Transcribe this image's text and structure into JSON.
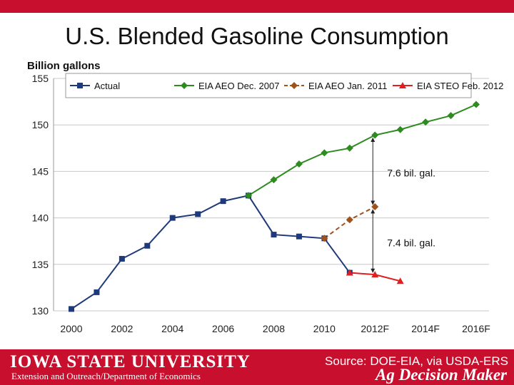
{
  "slide_title": "U.S. Blended Gasoline Consumption",
  "footer": {
    "logo_text": "IOWA STATE UNIVERSITY",
    "unit_text": "Extension and Outreach/Department of Economics",
    "source_text": "Source: DOE-EIA, via USDA-ERS",
    "brand_text": "Ag Decision Maker"
  },
  "colors": {
    "brand_red": "#c8102e",
    "actual": "#1f3a7a",
    "aeo2007": "#2e8b1f",
    "aeo2011": "#a0521d",
    "steo2012": "#e02020"
  },
  "chart_data": {
    "type": "line",
    "ylabel": "Billion gallons",
    "ylim": [
      130,
      155
    ],
    "yticks": [
      130,
      135,
      140,
      145,
      150,
      155
    ],
    "xlim": [
      2000,
      2016
    ],
    "xticks": [
      2000,
      2002,
      2004,
      2006,
      2008,
      2010,
      2012,
      2014,
      2016
    ],
    "xtick_labels": [
      "2000",
      "2002",
      "2004",
      "2006",
      "2008",
      "2010",
      "2012F",
      "2014F",
      "2016F"
    ],
    "series": [
      {
        "name": "Actual",
        "color": "#1f3a7a",
        "marker": "square",
        "dash": false,
        "x": [
          2000,
          2001,
          2002,
          2003,
          2004,
          2005,
          2006,
          2007,
          2008,
          2009,
          2010,
          2011
        ],
        "values": [
          130.2,
          132.0,
          135.6,
          137.0,
          140.0,
          140.4,
          141.8,
          142.4,
          138.2,
          138.0,
          137.8,
          134.1
        ]
      },
      {
        "name": "EIA AEO Dec. 2007",
        "color": "#2e8b1f",
        "marker": "diamond",
        "dash": false,
        "x": [
          2007,
          2008,
          2009,
          2010,
          2011,
          2012,
          2013,
          2014,
          2015,
          2016
        ],
        "values": [
          142.4,
          144.1,
          145.8,
          147.0,
          147.5,
          148.9,
          149.5,
          150.3,
          151.0,
          152.2
        ]
      },
      {
        "name": "EIA AEO Jan. 2011",
        "color": "#a0521d",
        "marker": "diamond",
        "dash": true,
        "x": [
          2010,
          2011,
          2012
        ],
        "values": [
          137.8,
          139.8,
          141.2
        ]
      },
      {
        "name": "EIA STEO Feb. 2012",
        "color": "#e02020",
        "marker": "triangle",
        "dash": false,
        "x": [
          2011,
          2012,
          2013
        ],
        "values": [
          134.1,
          133.9,
          133.2
        ]
      }
    ],
    "annotations": [
      {
        "text": "7.6 bil. gal.",
        "x": 2012,
        "from": 141.2,
        "to": 148.9
      },
      {
        "text": "7.4 bil. gal.",
        "x": 2012,
        "from": 133.9,
        "to": 141.2
      }
    ]
  }
}
